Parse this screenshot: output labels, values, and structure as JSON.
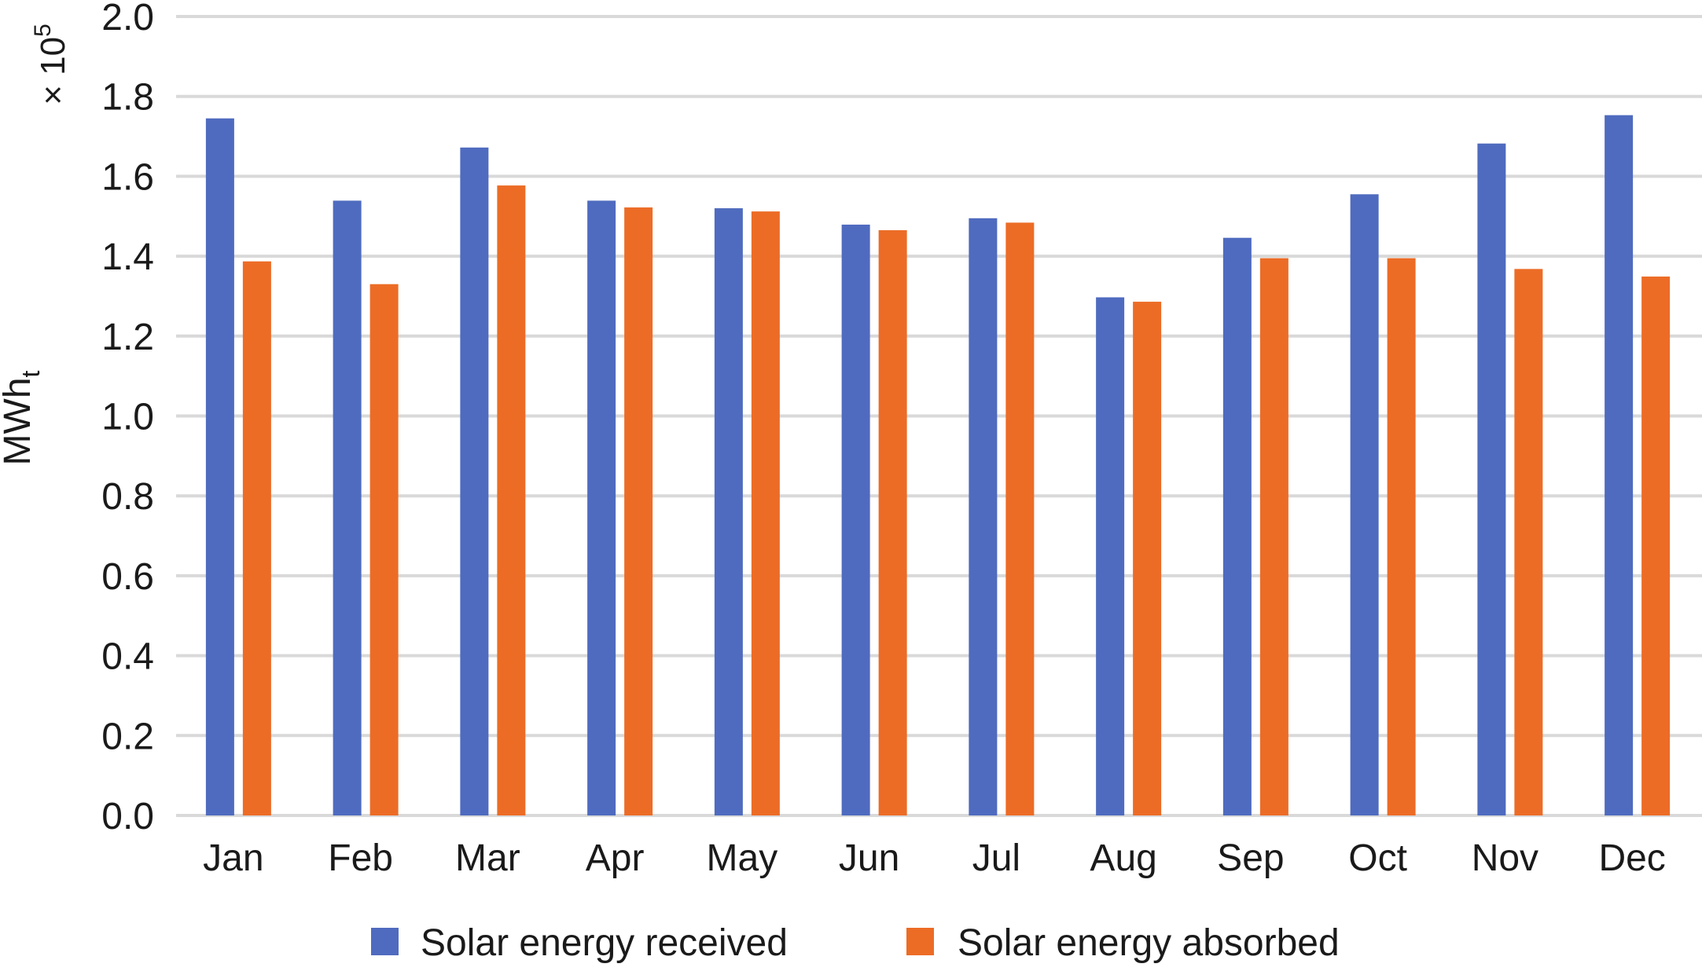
{
  "chart_data": {
    "type": "bar",
    "title": "",
    "xlabel": "",
    "ylabel": "MWh",
    "ylabel_subscript": "t",
    "y_multiplier": "× 10",
    "y_multiplier_exponent": "5",
    "ylim": [
      0,
      2.0
    ],
    "yticks": [
      "0.0",
      "0.2",
      "0.4",
      "0.6",
      "0.8",
      "1.0",
      "1.2",
      "1.4",
      "1.6",
      "1.8",
      "2.0"
    ],
    "grid": true,
    "legend_placement": "bottom",
    "categories": [
      "Jan",
      "Feb",
      "Mar",
      "Apr",
      "May",
      "Jun",
      "Jul",
      "Aug",
      "Sep",
      "Oct",
      "Nov",
      "Dec"
    ],
    "series": [
      {
        "name": "Solar energy received",
        "color": "#4f6bbf",
        "values": [
          1.745,
          1.539,
          1.672,
          1.539,
          1.52,
          1.479,
          1.495,
          1.297,
          1.446,
          1.555,
          1.682,
          1.753
        ]
      },
      {
        "name": "Solar energy absorbed",
        "color": "#ec6c26",
        "values": [
          1.387,
          1.33,
          1.577,
          1.522,
          1.512,
          1.465,
          1.484,
          1.286,
          1.395,
          1.395,
          1.368,
          1.349
        ]
      }
    ]
  }
}
